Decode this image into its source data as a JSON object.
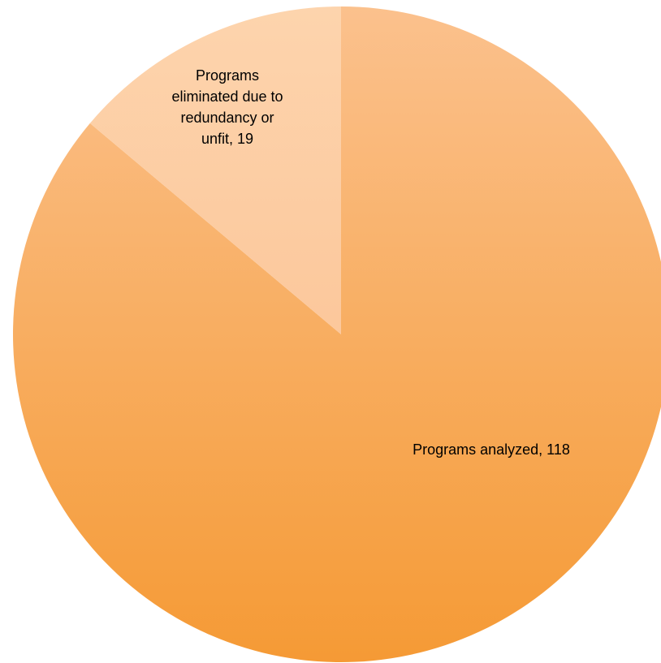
{
  "chart_data": {
    "type": "pie",
    "title": "",
    "start_angle_deg": 0,
    "direction": "clockwise",
    "slices": [
      {
        "name": "Programs analyzed",
        "value": 118,
        "label": "Programs analyzed, 118",
        "color_light": "#fbc18d",
        "color_dark": "#f59a35"
      },
      {
        "name": "Programs eliminated due to redundancy or unfit",
        "value": 19,
        "label": "Programs eliminated due to redundancy or unfit, 19",
        "label_lines": [
          "Programs",
          "eliminated due to",
          "redundancy or",
          "unfit, 19"
        ],
        "color_light": "#fdd4ad",
        "color_dark": "#fbbb8a"
      }
    ],
    "legend": "none"
  }
}
